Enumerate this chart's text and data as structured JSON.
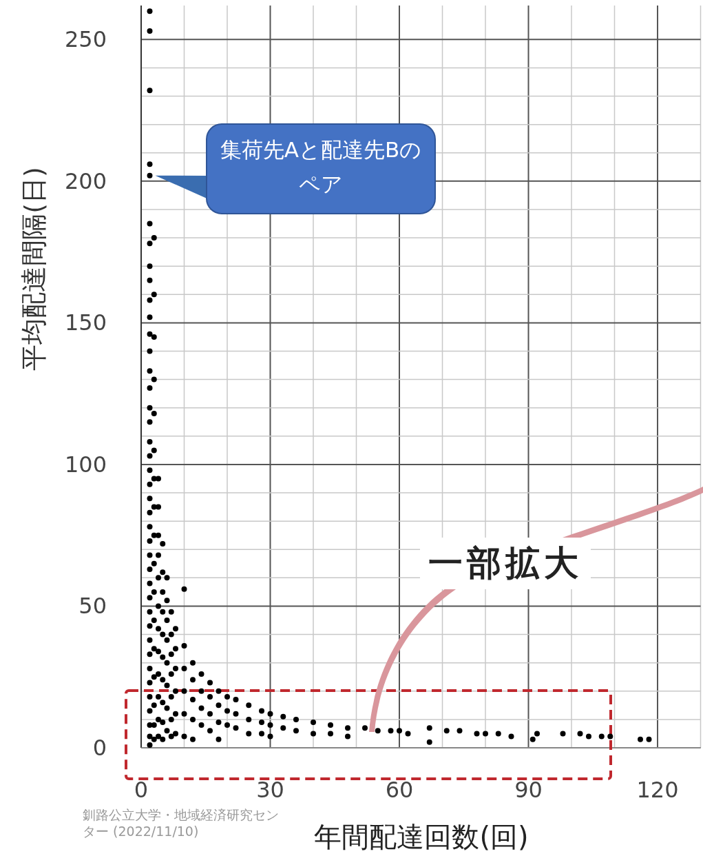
{
  "chart_data": {
    "type": "scatter",
    "xlabel": "年間配達回数(回)",
    "ylabel": "平均配達間隔(日)",
    "xlim": [
      0,
      130
    ],
    "ylim": [
      0,
      262
    ],
    "xticks": [
      0,
      {
        "value": 10,
        "label": null
      },
      {
        "value": 20,
        "label": null
      },
      30,
      {
        "value": 40,
        "label": null
      },
      {
        "value": 50,
        "label": null
      },
      60,
      {
        "value": 70,
        "label": null
      },
      {
        "value": 80,
        "label": null
      },
      90,
      {
        "value": 100,
        "label": null
      },
      {
        "value": 110,
        "label": null
      },
      120,
      {
        "value": 130,
        "label": null
      }
    ],
    "yticks": [
      0,
      {
        "value": 10,
        "label": null
      },
      {
        "value": 20,
        "label": null
      },
      {
        "value": 30,
        "label": null
      },
      {
        "value": 40,
        "label": null
      },
      50,
      {
        "value": 60,
        "label": null
      },
      {
        "value": 70,
        "label": null
      },
      {
        "value": 80,
        "label": null
      },
      {
        "value": 90,
        "label": null
      },
      100,
      {
        "value": 110,
        "label": null
      },
      {
        "value": 120,
        "label": null
      },
      {
        "value": 130,
        "label": null
      },
      {
        "value": 140,
        "label": null
      },
      150,
      {
        "value": 160,
        "label": null
      },
      {
        "value": 170,
        "label": null
      },
      {
        "value": 180,
        "label": null
      },
      {
        "value": 190,
        "label": null
      },
      200,
      {
        "value": 210,
        "label": null
      },
      {
        "value": 220,
        "label": null
      },
      {
        "value": 230,
        "label": null
      },
      {
        "value": 240,
        "label": null
      },
      250
    ],
    "grid": true,
    "marker": "circle",
    "series": [
      {
        "color": "#000000",
        "x": [
          2,
          2,
          2,
          2,
          2,
          2,
          2,
          2,
          2,
          2,
          2,
          2,
          2,
          2,
          2,
          2,
          2,
          2,
          2,
          2,
          2,
          2,
          2,
          2,
          2,
          2,
          2,
          2,
          2,
          2,
          2,
          2,
          2,
          2,
          2,
          2,
          2,
          2,
          2,
          2,
          3,
          3,
          3,
          3,
          3,
          3,
          3,
          3,
          3,
          3,
          3,
          3,
          3,
          3,
          3,
          3,
          3,
          4,
          4,
          4,
          4,
          4,
          4,
          4,
          4,
          4,
          4,
          4,
          4,
          5,
          5,
          5,
          5,
          5,
          5,
          5,
          5,
          5,
          5,
          6,
          6,
          6,
          6,
          6,
          6,
          6,
          6,
          7,
          7,
          7,
          7,
          7,
          7,
          7,
          8,
          8,
          8,
          8,
          8,
          8,
          10,
          10,
          10,
          10,
          10,
          10,
          12,
          12,
          12,
          12,
          12,
          14,
          14,
          14,
          14,
          16,
          16,
          16,
          16,
          18,
          18,
          18,
          18,
          20,
          20,
          20,
          22,
          22,
          22,
          25,
          25,
          25,
          28,
          28,
          28,
          30,
          30,
          30,
          33,
          33,
          36,
          36,
          40,
          40,
          44,
          44,
          48,
          48,
          52,
          55,
          58,
          60,
          62,
          67,
          67,
          71,
          74,
          78,
          80,
          83,
          86,
          91,
          92,
          98,
          102,
          104,
          107,
          109,
          116,
          118
        ],
        "values": [
          260,
          253,
          232,
          206,
          202,
          185,
          178,
          170,
          165,
          158,
          152,
          146,
          140,
          133,
          127,
          120,
          115,
          108,
          103,
          98,
          93,
          88,
          83,
          78,
          73,
          68,
          63,
          58,
          53,
          48,
          43,
          38,
          33,
          28,
          23,
          18,
          13,
          8,
          4,
          1,
          180,
          160,
          145,
          130,
          118,
          105,
          95,
          85,
          75,
          65,
          55,
          45,
          35,
          25,
          15,
          8,
          3,
          95,
          85,
          75,
          68,
          60,
          50,
          42,
          34,
          26,
          18,
          10,
          4,
          72,
          62,
          55,
          48,
          40,
          32,
          24,
          16,
          9,
          3,
          60,
          52,
          45,
          38,
          30,
          22,
          14,
          6,
          48,
          40,
          33,
          26,
          18,
          10,
          4,
          42,
          35,
          28,
          20,
          12,
          5,
          56,
          36,
          28,
          20,
          12,
          4,
          30,
          24,
          17,
          10,
          3,
          26,
          20,
          14,
          8,
          23,
          18,
          12,
          6,
          20,
          15,
          9,
          3,
          18,
          13,
          8,
          17,
          12,
          7,
          15,
          10,
          5,
          13,
          9,
          5,
          12,
          8,
          4,
          11,
          7,
          10,
          6,
          9,
          5,
          8,
          5,
          7,
          4,
          7,
          6,
          6,
          6,
          5,
          7,
          2,
          6,
          6,
          5,
          5,
          5,
          4,
          3,
          5,
          5,
          5,
          4,
          4,
          4,
          3,
          3
        ]
      }
    ],
    "annotations": [
      {
        "text": "集荷先Aと配達先Bのペア",
        "x": 2,
        "y": 202
      },
      "一部拡大",
      "釧路公立大学・地域経済研究センター (2022/11/10)"
    ]
  }
}
